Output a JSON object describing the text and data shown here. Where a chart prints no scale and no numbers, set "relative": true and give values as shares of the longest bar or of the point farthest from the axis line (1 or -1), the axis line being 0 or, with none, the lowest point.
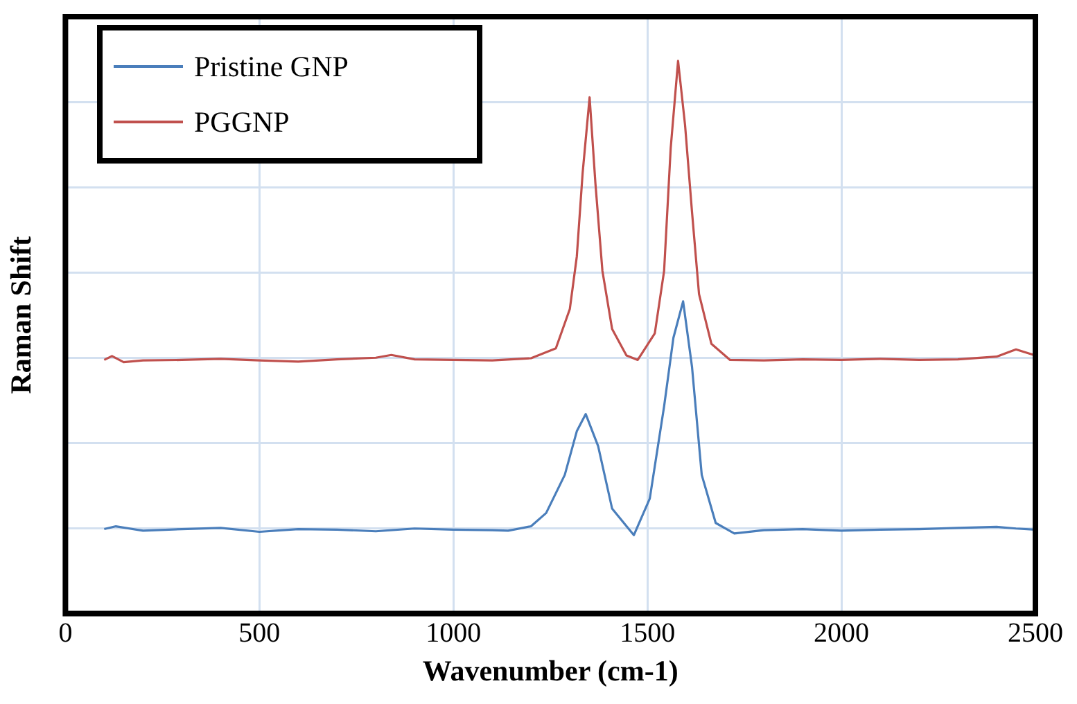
{
  "chart_data": {
    "type": "line",
    "xlabel": "Wavenumber (cm-1)",
    "ylabel": "Raman Shift",
    "relative": true,
    "xlim": [
      0,
      2500
    ],
    "xticks": [
      0,
      500,
      1000,
      1500,
      2000,
      2500
    ],
    "grid": true,
    "legend": "top left",
    "marker": "none",
    "line_style": "solid",
    "series": [
      {
        "name": "Pristine GNP",
        "color": "#4a7ebb",
        "x": [
          100,
          130,
          200,
          300,
          400,
          500,
          600,
          700,
          800,
          900,
          1000,
          1100,
          1141,
          1200,
          1239,
          1287,
          1318,
          1341,
          1373,
          1409,
          1465,
          1506,
          1543,
          1567,
          1592,
          1615,
          1640,
          1676,
          1724,
          1800,
          1900,
          2000,
          2100,
          2200,
          2300,
          2400,
          2450,
          2500
        ],
        "values": [
          0.153,
          0.158,
          0.15,
          0.153,
          0.155,
          0.148,
          0.153,
          0.152,
          0.149,
          0.154,
          0.152,
          0.151,
          0.15,
          0.158,
          0.182,
          0.251,
          0.33,
          0.361,
          0.303,
          0.19,
          0.142,
          0.208,
          0.375,
          0.499,
          0.565,
          0.446,
          0.251,
          0.164,
          0.145,
          0.151,
          0.153,
          0.15,
          0.152,
          0.153,
          0.155,
          0.157,
          0.154,
          0.152
        ]
      },
      {
        "name": "PGGNP",
        "color": "#c0504d",
        "x": [
          100,
          120,
          150,
          200,
          300,
          400,
          500,
          600,
          700,
          800,
          840,
          900,
          1000,
          1100,
          1200,
          1264,
          1300,
          1318,
          1333,
          1351,
          1366,
          1384,
          1409,
          1446,
          1475,
          1519,
          1543,
          1560,
          1579,
          1597,
          1615,
          1633,
          1665,
          1713,
          1800,
          1900,
          2000,
          2100,
          2200,
          2300,
          2400,
          2450,
          2500
        ],
        "values": [
          0.459,
          0.466,
          0.455,
          0.458,
          0.459,
          0.461,
          0.458,
          0.456,
          0.46,
          0.463,
          0.468,
          0.46,
          0.459,
          0.458,
          0.462,
          0.48,
          0.551,
          0.646,
          0.797,
          0.934,
          0.778,
          0.62,
          0.515,
          0.467,
          0.459,
          0.507,
          0.62,
          0.842,
          1,
          0.884,
          0.726,
          0.578,
          0.488,
          0.459,
          0.458,
          0.46,
          0.459,
          0.461,
          0.459,
          0.46,
          0.465,
          0.478,
          0.467
        ]
      }
    ]
  }
}
